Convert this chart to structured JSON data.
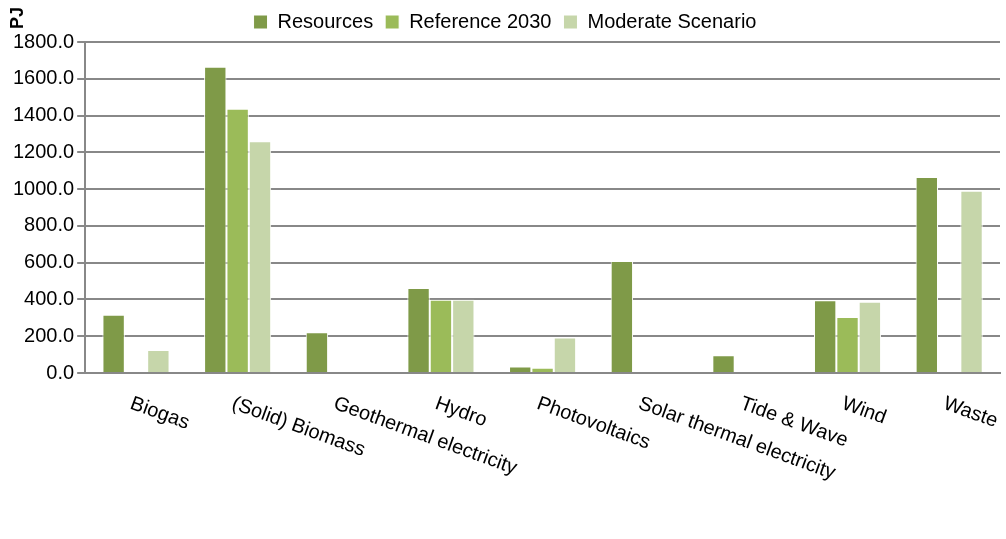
{
  "chart_data": {
    "type": "bar",
    "ylabel": "PJ",
    "categories": [
      "Biogas",
      "(Solid) Biomass",
      "Geothermal electricity",
      "Hydro",
      "Photovoltaics",
      "Solar thermal electricity",
      "Tide & Wave",
      "Wind",
      "Waste"
    ],
    "series": [
      {
        "name": "Resources",
        "color": "#7f9a48",
        "values": [
          317,
          1666,
          222,
          462,
          35,
          609,
          97,
          396,
          1066
        ]
      },
      {
        "name": "Reference 2030",
        "color": "#9bbb59",
        "values": [
          null,
          1437,
          null,
          398,
          28,
          null,
          null,
          305,
          null
        ]
      },
      {
        "name": "Moderate Scenario",
        "color": "#c6d6aa",
        "values": [
          125,
          1260,
          null,
          398,
          193,
          null,
          null,
          387,
          991
        ]
      }
    ],
    "ylim": [
      0,
      1800
    ],
    "yticks": [
      {
        "value": 0,
        "label": "0.0"
      },
      {
        "value": 200,
        "label": "200.0"
      },
      {
        "value": 400,
        "label": "400.0"
      },
      {
        "value": 600,
        "label": "600.0"
      },
      {
        "value": 800,
        "label": "800.0"
      },
      {
        "value": 1000,
        "label": "1000.0"
      },
      {
        "value": 1200,
        "label": "1200.0"
      },
      {
        "value": 1400,
        "label": "1400.0"
      },
      {
        "value": 1600,
        "label": "1600.0"
      },
      {
        "value": 1800,
        "label": "1800.0"
      }
    ],
    "grid": "y",
    "legend": "top"
  }
}
